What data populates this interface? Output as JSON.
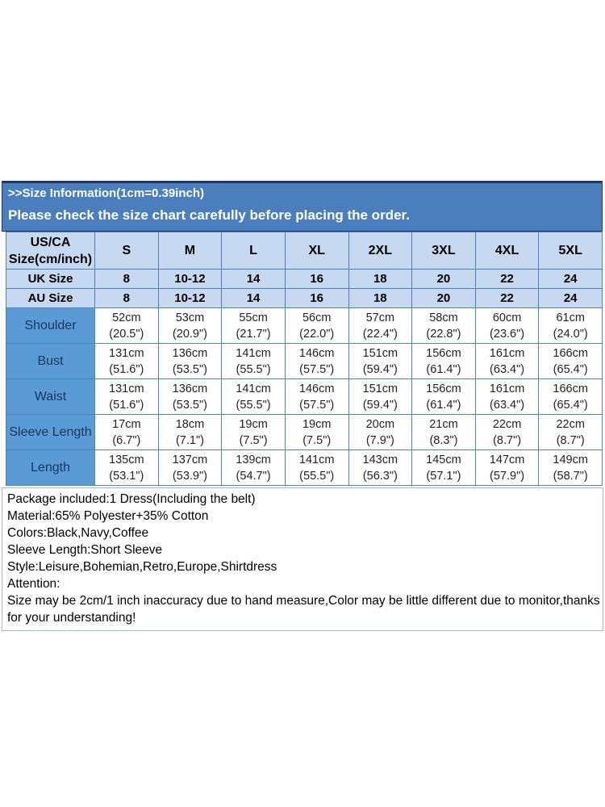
{
  "header": {
    "line1": ">>Size Information(1cm=0.39inch)",
    "line2": "Please check the size chart carefully before placing the order."
  },
  "table": {
    "corner": {
      "line1": "US/CA",
      "line2": "Size(cm/inch)"
    },
    "columns": [
      "S",
      "M",
      "L",
      "XL",
      "2XL",
      "3XL",
      "4XL",
      "5XL"
    ],
    "simple_rows": [
      {
        "label": "UK Size",
        "values": [
          "8",
          "10-12",
          "14",
          "16",
          "18",
          "20",
          "22",
          "24"
        ]
      },
      {
        "label": "AU Size",
        "values": [
          "8",
          "10-12",
          "14",
          "16",
          "18",
          "20",
          "22",
          "24"
        ]
      }
    ],
    "measurement_rows": [
      {
        "label": "Shoulder",
        "cm": [
          "52cm",
          "53cm",
          "55cm",
          "56cm",
          "57cm",
          "58cm",
          "60cm",
          "61cm"
        ],
        "inch": [
          "(20.5\")",
          "(20.9\")",
          "(21.7\")",
          "(22.0\")",
          "(22.4\")",
          "(22.8\")",
          "(23.6\")",
          "(24.0\")"
        ]
      },
      {
        "label": "Bust",
        "cm": [
          "131cm",
          "136cm",
          "141cm",
          "146cm",
          "151cm",
          "156cm",
          "161cm",
          "166cm"
        ],
        "inch": [
          "(51.6\")",
          "(53.5\")",
          "(55.5\")",
          "(57.5\")",
          "(59.4\")",
          "(61.4\")",
          "(63.4\")",
          "(65.4\")"
        ]
      },
      {
        "label": "Waist",
        "cm": [
          "131cm",
          "136cm",
          "141cm",
          "146cm",
          "151cm",
          "156cm",
          "161cm",
          "166cm"
        ],
        "inch": [
          "(51.6\")",
          "(53.5\")",
          "(55.5\")",
          "(57.5\")",
          "(59.4\")",
          "(61.4\")",
          "(63.4\")",
          "(65.4\")"
        ]
      },
      {
        "label": "Sleeve Length",
        "cm": [
          "17cm",
          "18cm",
          "19cm",
          "19cm",
          "20cm",
          "21cm",
          "22cm",
          "22cm"
        ],
        "inch": [
          "(6.7\")",
          "(7.1\")",
          "(7.5\")",
          "(7.5\")",
          "(7.9\")",
          "(8.3\")",
          "(8.7\")",
          "(8.7\")"
        ]
      },
      {
        "label": "Length",
        "cm": [
          "135cm",
          "137cm",
          "139cm",
          "141cm",
          "143cm",
          "145cm",
          "147cm",
          "149cm"
        ],
        "inch": [
          "(53.1\")",
          "(53.9\")",
          "(54.7\")",
          "(55.5\")",
          "(56.3\")",
          "(57.1\")",
          "(57.9\")",
          "(58.7\")"
        ]
      }
    ]
  },
  "details": {
    "lines": [
      "Package included:1 Dress(Including the belt)",
      "Material:65% Polyester+35% Cotton",
      "Colors:Black,Navy,Coffee",
      "Sleeve Length:Short Sleeve",
      "Style:Leisure,Bohemian,Retro,Europe,Shirtdress",
      "Attention:",
      "Size may be 2cm/1 inch inaccuracy due to hand measure,Color may be little different due to monitor,thanks for your understanding!"
    ]
  },
  "colors": {
    "banner_bg": "#4a7ebc",
    "banner_border": "#1f3864",
    "banner_text": "#ffffff",
    "header_cell_bg": "#c6d9f1",
    "label_cell_bg": "#5b9bd5",
    "label_text": "#17375e",
    "table_border": "#4f81bd",
    "details_border": "#a3b8d4"
  }
}
